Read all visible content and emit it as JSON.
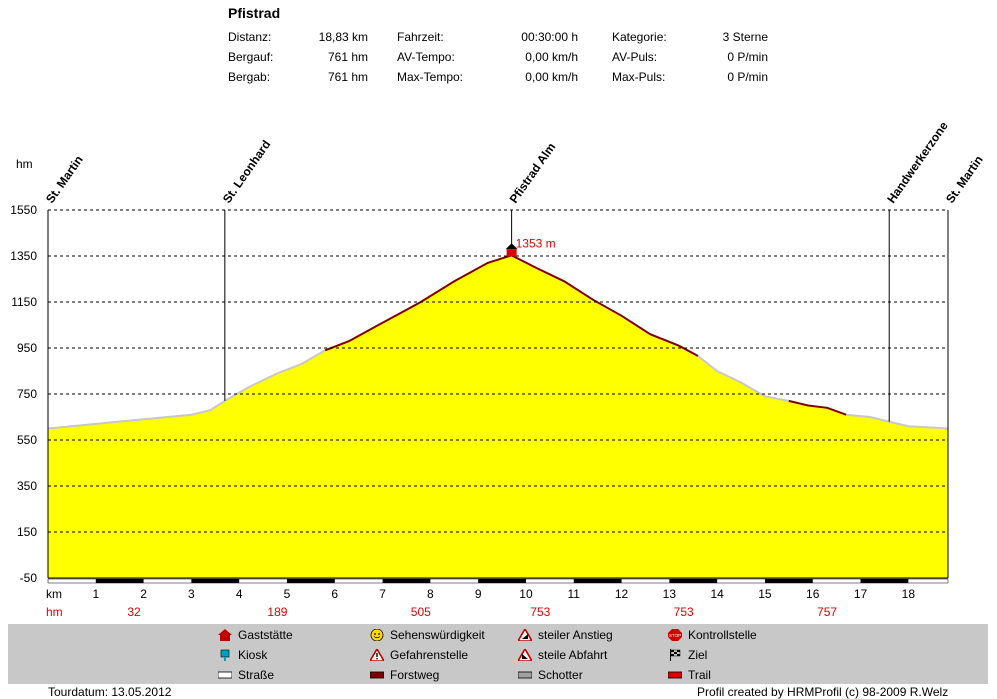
{
  "tour": {
    "title": "Pfistrad",
    "stats": [
      {
        "label": "Distanz:",
        "value": "18,83 km"
      },
      {
        "label": "Bergauf:",
        "value": "761 hm"
      },
      {
        "label": "Bergab:",
        "value": "761 hm"
      },
      {
        "label": "Fahrzeit:",
        "value": "00:30:00 h"
      },
      {
        "label": "AV-Tempo:",
        "value": "0,00 km/h"
      },
      {
        "label": "Max-Tempo:",
        "value": "0,00 km/h"
      },
      {
        "label": "Kategorie:",
        "value": "3 Sterne"
      },
      {
        "label": "AV-Puls:",
        "value": "0 P/min"
      },
      {
        "label": "Max-Puls:",
        "value": "0 P/min"
      }
    ]
  },
  "chart_data": {
    "type": "area",
    "ylabel": "hm",
    "xlabel": "km",
    "ylim": [
      -50,
      1550
    ],
    "xlim": [
      0,
      18.83
    ],
    "y_ticks": [
      -50,
      150,
      350,
      550,
      750,
      950,
      1150,
      1350,
      1550
    ],
    "x_ticks": [
      1,
      2,
      3,
      4,
      5,
      6,
      7,
      8,
      9,
      10,
      11,
      12,
      13,
      14,
      15,
      16,
      17,
      18
    ],
    "grid": true,
    "profile": {
      "x": [
        0,
        1,
        2,
        3,
        3.4,
        3.7,
        4.2,
        4.8,
        5.3,
        5.8,
        6.3,
        7,
        7.8,
        8.5,
        9.2,
        9.7,
        10.2,
        10.8,
        11.4,
        12,
        12.6,
        13.2,
        13.6,
        14,
        14.5,
        15,
        15.5,
        15.9,
        16.3,
        16.7,
        17.2,
        17.6,
        18,
        18.83
      ],
      "elevation": [
        600,
        620,
        640,
        660,
        680,
        720,
        780,
        840,
        880,
        940,
        980,
        1060,
        1150,
        1240,
        1320,
        1353,
        1300,
        1240,
        1160,
        1090,
        1010,
        960,
        915,
        850,
        800,
        740,
        720,
        700,
        690,
        660,
        650,
        630,
        610,
        600
      ]
    },
    "waypoints": [
      {
        "name": "St. Martin",
        "km": 0
      },
      {
        "name": "St. Leonhard",
        "km": 3.7
      },
      {
        "name": "Pfistrad Alm",
        "km": 9.7
      },
      {
        "name": "Handwerkerzone",
        "km": 17.6
      },
      {
        "name": "St. Martin",
        "km": 18.83
      }
    ],
    "peak_label": "1353 m",
    "peak": {
      "km": 9.7,
      "elevation": 1353
    },
    "hm_row_label": "hm",
    "hm_row": [
      {
        "km": 1.8,
        "value": "32"
      },
      {
        "km": 4.8,
        "value": "189"
      },
      {
        "km": 7.8,
        "value": "505"
      },
      {
        "km": 10.3,
        "value": "753"
      },
      {
        "km": 13.3,
        "value": "753"
      },
      {
        "km": 16.3,
        "value": "757"
      }
    ],
    "colors": {
      "fill": "#ffff00",
      "line_asphalt": "#c8c8c8",
      "line_forest": "#800000",
      "peak_marker": "#e00000",
      "grid": "#000000"
    }
  },
  "legend": [
    {
      "label": "Gaststätte",
      "icon": "gaststaette-icon"
    },
    {
      "label": "Sehenswürdigkeit",
      "icon": "sehenswuerdigkeit-icon"
    },
    {
      "label": "steiler Anstieg",
      "icon": "steiler-anstieg-icon"
    },
    {
      "label": "Kontrollstelle",
      "icon": "kontrollstelle-icon"
    },
    {
      "label": "Kiosk",
      "icon": "kiosk-icon"
    },
    {
      "label": "Gefahrenstelle",
      "icon": "gefahrenstelle-icon"
    },
    {
      "label": "steile Abfahrt",
      "icon": "steile-abfahrt-icon"
    },
    {
      "label": "Ziel",
      "icon": "ziel-icon"
    },
    {
      "label": "Straße",
      "icon": "strasse-icon"
    },
    {
      "label": "Forstweg",
      "icon": "forstweg-icon"
    },
    {
      "label": "Schotter",
      "icon": "schotter-icon"
    },
    {
      "label": "Trail",
      "icon": "trail-icon"
    }
  ],
  "footer": {
    "date": "Tourdatum: 13.05.2012",
    "credit": "Profil created by HRMProfil (c) 98-2009 R.Welz"
  }
}
